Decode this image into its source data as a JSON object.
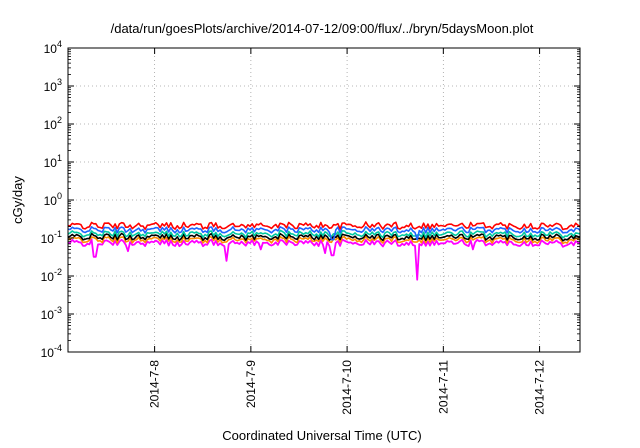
{
  "chart_data": {
    "type": "line",
    "title": "/data/run/goesPlots/archive/2014-07-12/09:00/flux/../bryn/5daysMoon.plot",
    "xlabel": "Coordinated Universal Time (UTC)",
    "ylabel": "cGy/day",
    "yscale": "log",
    "ylim_exponents": [
      -4,
      4
    ],
    "y_ticks": [
      {
        "base": "10",
        "exp": "-4",
        "value": -4
      },
      {
        "base": "10",
        "exp": "-3",
        "value": -3
      },
      {
        "base": "10",
        "exp": "-2",
        "value": -2
      },
      {
        "base": "10",
        "exp": "-1",
        "value": -1
      },
      {
        "base": "10",
        "exp": "0",
        "value": 0
      },
      {
        "base": "10",
        "exp": "1",
        "value": 1
      },
      {
        "base": "10",
        "exp": "2",
        "value": 2
      },
      {
        "base": "10",
        "exp": "3",
        "value": 3
      },
      {
        "base": "10",
        "exp": "4",
        "value": 4
      }
    ],
    "xlim_days": [
      7.1,
      12.42
    ],
    "x_ticks": [
      {
        "label": "2014-7-8",
        "day": 8
      },
      {
        "label": "2014-7-9",
        "day": 9
      },
      {
        "label": "2014-7-10",
        "day": 10
      },
      {
        "label": "2014-7-11",
        "day": 11
      },
      {
        "label": "2014-7-12",
        "day": 12
      }
    ],
    "grid": true,
    "legend": "none",
    "series": [
      {
        "color": "#ff00ff",
        "base": 0.075,
        "spikes": [
          {
            "day": 7.38,
            "value": 0.032
          },
          {
            "day": 7.72,
            "value": 0.045
          },
          {
            "day": 8.75,
            "value": 0.025
          },
          {
            "day": 9.1,
            "value": 0.05
          },
          {
            "day": 9.78,
            "value": 0.04
          },
          {
            "day": 9.85,
            "value": 0.035
          },
          {
            "day": 10.72,
            "value": 0.008
          },
          {
            "day": 11.3,
            "value": 0.05
          }
        ]
      },
      {
        "color": "#ff8c00",
        "base": 0.092,
        "spikes": []
      },
      {
        "color": "#000000",
        "base": 0.108,
        "spikes": []
      },
      {
        "color": "#00c8a0",
        "base": 0.13,
        "spikes": []
      },
      {
        "color": "#1e64ff",
        "base": 0.175,
        "spikes": [
          {
            "day": 9.85,
            "value": 0.09
          },
          {
            "day": 10.72,
            "value": 0.09
          }
        ]
      },
      {
        "color": "#ff0000",
        "base": 0.215,
        "spikes": []
      }
    ]
  }
}
